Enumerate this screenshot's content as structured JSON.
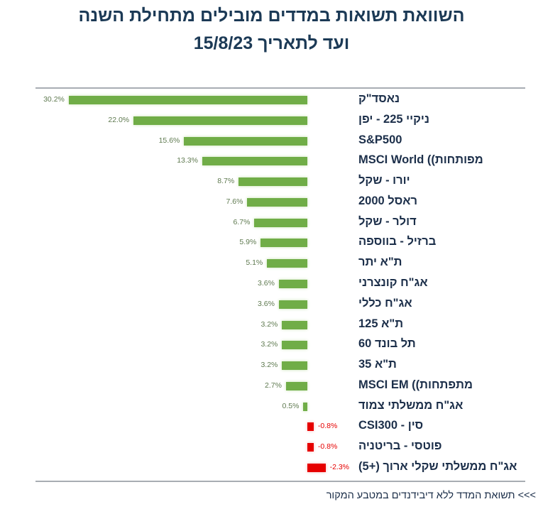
{
  "chart_data": {
    "type": "bar",
    "orientation": "horizontal",
    "title": "השוואת תשואות במדדים מובילים מתחילת השנה",
    "subtitle": "ועד לתאריך  15/8/23",
    "categories": [
      "נאסד\"ק",
      "ניקיי 225 - יפן",
      "S&P500",
      "מפותחות)) MSCI World",
      "יורו - שקל",
      "ראסל 2000",
      "דולר - שקל",
      "ברזיל - בווספה",
      "ת\"א יתר",
      "אג\"ח קונצרני",
      "אג\"ח כללי",
      "ת\"א 125",
      "תל בונד 60",
      "ת\"א 35",
      "מתפתחות)) MSCI EM",
      "אג\"ח ממשלתי צמוד",
      "סין - CSI300",
      "פוטסי - בריטניה",
      "אג\"ח ממשלתי שקלי ארוך (+5)"
    ],
    "values": [
      30.2,
      22.0,
      15.6,
      13.3,
      8.7,
      7.6,
      6.7,
      5.9,
      5.1,
      3.6,
      3.6,
      3.2,
      3.2,
      3.2,
      2.7,
      0.5,
      -0.8,
      -0.8,
      -2.3
    ],
    "value_labels": [
      "30.2%",
      "22.0%",
      "15.6%",
      "13.3%",
      "8.7%",
      "7.6%",
      "6.7%",
      "5.9%",
      "5.1%",
      "3.6%",
      "3.6%",
      "3.2%",
      "3.2%",
      "3.2%",
      "2.7%",
      "0.5%",
      "-0.8%",
      "-0.8%",
      "-2.3%"
    ],
    "xlim": [
      -2.3,
      30.2
    ],
    "positive_color": "#70ad47",
    "negative_color": "#e60000",
    "xlabel": "",
    "ylabel": "",
    "footnote": ">>> תשואת המדד ללא דיבידנדים במטבע המקור"
  }
}
